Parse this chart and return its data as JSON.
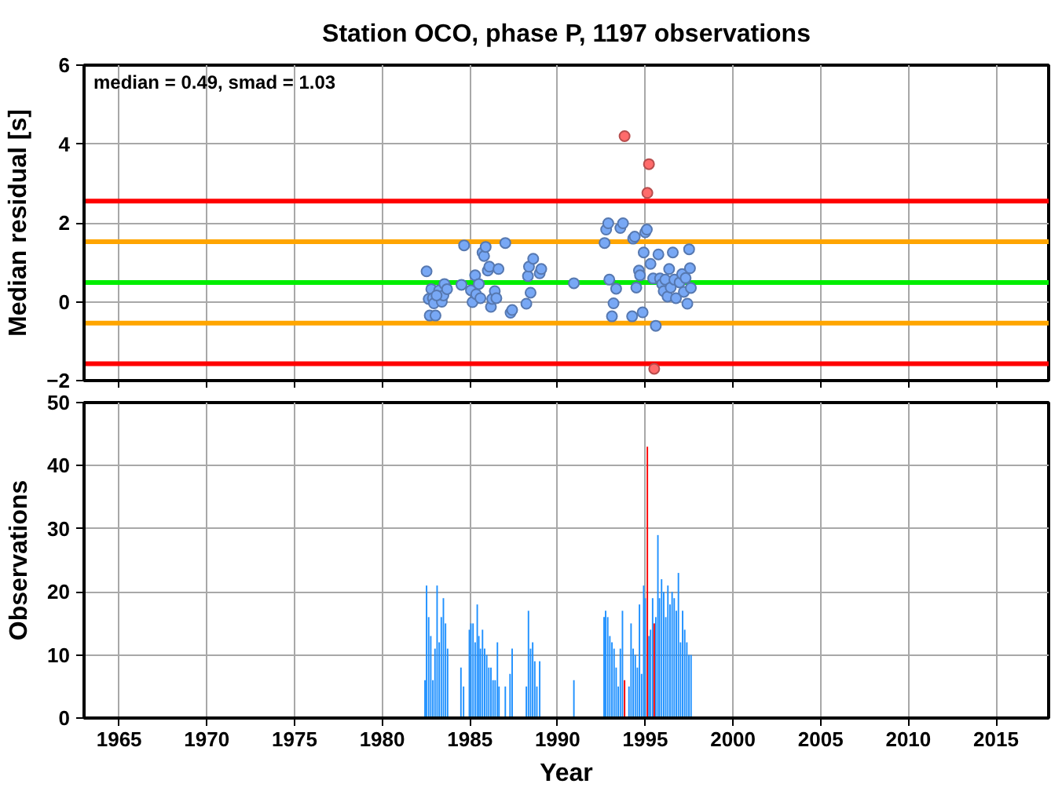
{
  "chart_data": [
    {
      "type": "scatter",
      "title": "Station OCO, phase P, 1197 observations",
      "ylabel": "Median residual [s]",
      "xlim": [
        1963,
        2018
      ],
      "xticks": [
        1965,
        1970,
        1975,
        1980,
        1985,
        1990,
        1995,
        2000,
        2005,
        2010,
        2015
      ],
      "ylim": [
        -2,
        6
      ],
      "yticks": [
        -2,
        0,
        2,
        4,
        6
      ],
      "grid": true,
      "tick_labels": "y",
      "marker": "circle",
      "annotations": [
        "median = 0.49, smad = 1.03"
      ],
      "ref_lines": [
        {
          "axis": "y",
          "value": 2.55,
          "color": "#ff0000"
        },
        {
          "axis": "y",
          "value": 1.52,
          "color": "#ffa500"
        },
        {
          "axis": "y",
          "value": 0.49,
          "color": "#00ee00"
        },
        {
          "axis": "y",
          "value": -0.54,
          "color": "#ffa500"
        },
        {
          "axis": "y",
          "value": -1.57,
          "color": "#ff0000"
        }
      ],
      "series": [
        {
          "color": "#78a8f5",
          "x": [
            1982.53,
            1982.65,
            1982.71,
            1982.8,
            1982.89,
            1982.95,
            1983.04,
            1983.25,
            1983.4,
            1983.49,
            1983.55,
            1983.7,
            1984.52,
            1984.67,
            1985.06,
            1985.15,
            1985.3,
            1985.36,
            1985.51,
            1985.6,
            1985.72,
            1985.81,
            1985.9,
            1986.02,
            1986.11,
            1986.2,
            1986.27,
            1986.42,
            1986.51,
            1986.63,
            1987.02,
            1987.32,
            1987.41,
            1988.22,
            1988.31,
            1988.37,
            1988.46,
            1988.61,
            1988.98,
            1989.07,
            1990.93,
            1992.68,
            1992.77,
            1992.89,
            1992.95,
            1993.1,
            1993.19,
            1993.34,
            1993.58,
            1993.73,
            1994.25,
            1994.31,
            1994.4,
            1994.49,
            1994.64,
            1994.7,
            1994.85,
            1994.91,
            1995.0,
            1995.09,
            1995.3,
            1995.45,
            1995.6,
            1995.75,
            1995.84,
            1995.96,
            1996.05,
            1996.14,
            1996.27,
            1996.36,
            1996.45,
            1996.57,
            1996.66,
            1996.75,
            1996.96,
            1997.1,
            1997.2,
            1997.3,
            1997.4,
            1997.5,
            1997.55,
            1997.6,
            1983.1
          ],
          "values": [
            0.77,
            0.07,
            -0.35,
            0.32,
            0.09,
            -0.04,
            -0.35,
            0.29,
            0.0,
            0.16,
            0.45,
            0.32,
            0.43,
            1.43,
            0.29,
            -0.01,
            0.67,
            0.19,
            0.45,
            0.09,
            1.25,
            1.16,
            1.39,
            0.79,
            0.89,
            -0.13,
            0.07,
            0.27,
            0.09,
            0.83,
            1.49,
            -0.28,
            -0.21,
            -0.05,
            0.65,
            0.89,
            0.23,
            1.09,
            0.72,
            0.83,
            0.47,
            1.49,
            1.83,
            1.99,
            0.56,
            -0.37,
            -0.04,
            0.33,
            1.87,
            1.99,
            -0.37,
            1.6,
            1.65,
            0.36,
            0.79,
            0.67,
            -0.27,
            1.25,
            1.76,
            1.83,
            0.96,
            0.59,
            -0.61,
            1.2,
            0.59,
            0.45,
            0.27,
            0.56,
            0.13,
            0.83,
            0.36,
            1.25,
            0.56,
            0.09,
            0.49,
            0.7,
            0.25,
            0.6,
            -0.05,
            1.33,
            0.85,
            0.35,
            0.16
          ]
        },
        {
          "color": "#ff6b6b",
          "x": [
            1993.82,
            1995.12,
            1995.21,
            1995.51
          ],
          "values": [
            4.2,
            2.76,
            3.49,
            -1.7
          ]
        }
      ]
    },
    {
      "type": "bar",
      "xlabel": "Year",
      "ylabel": "Observations",
      "xlim": [
        1963,
        2018
      ],
      "xticks": [
        1965,
        1970,
        1975,
        1980,
        1985,
        1990,
        1995,
        2000,
        2005,
        2010,
        2015
      ],
      "ylim": [
        0,
        50
      ],
      "yticks": [
        0,
        10,
        20,
        30,
        40,
        50
      ],
      "grid": true,
      "series": [
        {
          "color": "#1e90ff",
          "x": [
            1982.44,
            1982.53,
            1982.65,
            1982.77,
            1982.89,
            1983.01,
            1983.13,
            1983.25,
            1983.37,
            1983.49,
            1983.61,
            1983.73,
            1984.49,
            1984.64,
            1984.97,
            1985.06,
            1985.18,
            1985.3,
            1985.42,
            1985.51,
            1985.6,
            1985.72,
            1985.84,
            1985.96,
            1986.08,
            1986.2,
            1986.32,
            1986.44,
            1986.57,
            1986.66,
            1987.02,
            1987.29,
            1987.41,
            1988.22,
            1988.34,
            1988.46,
            1988.58,
            1988.7,
            1988.82,
            1988.98,
            1990.93,
            1992.65,
            1992.74,
            1992.86,
            1992.98,
            1993.1,
            1993.22,
            1993.34,
            1993.46,
            1993.58,
            1993.7,
            1994.07,
            1994.19,
            1994.31,
            1994.43,
            1994.55,
            1994.67,
            1994.79,
            1994.91,
            1995.0,
            1995.21,
            1995.3,
            1995.42,
            1995.6,
            1995.72,
            1995.81,
            1995.93,
            1996.05,
            1996.17,
            1996.29,
            1996.41,
            1996.53,
            1996.65,
            1996.77,
            1996.89,
            1997.01,
            1997.13,
            1997.25,
            1997.37,
            1997.49,
            1997.61
          ],
          "values": [
            6,
            21,
            16,
            13,
            6,
            11,
            21,
            12,
            16,
            19,
            15,
            11,
            8,
            5,
            14,
            15,
            15,
            12,
            18,
            13,
            11,
            14,
            11,
            10,
            8,
            8,
            6,
            6,
            12,
            5,
            5,
            7,
            11,
            5,
            17,
            11,
            12,
            9,
            5,
            9,
            6,
            16,
            17,
            16,
            13,
            12,
            11,
            8,
            5,
            11,
            17,
            5,
            15,
            11,
            10,
            8,
            18,
            7,
            21,
            19,
            13,
            14,
            19,
            16,
            29,
            19,
            22,
            20,
            16,
            21,
            18,
            20,
            19,
            17,
            23,
            12,
            17,
            14,
            12,
            10,
            10
          ]
        },
        {
          "color": "#ff0000",
          "x": [
            1993.82,
            1995.12,
            1995.51
          ],
          "values": [
            6,
            43,
            15
          ]
        }
      ]
    }
  ]
}
